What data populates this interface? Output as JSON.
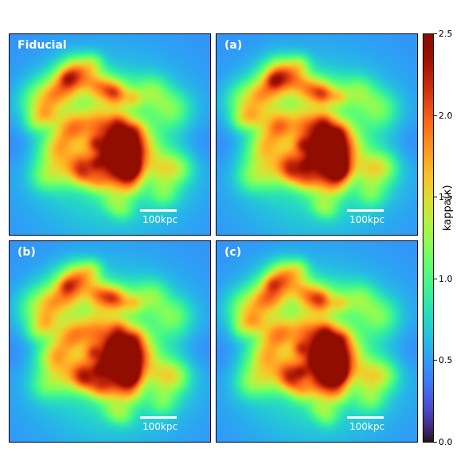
{
  "panels": [
    {
      "id": "fid",
      "label": "Fiducial",
      "scalebar_label": "100kpc",
      "variant": 0
    },
    {
      "id": "a",
      "label": "(a)",
      "scalebar_label": "100kpc",
      "variant": 1
    },
    {
      "id": "b",
      "label": "(b)",
      "scalebar_label": "100kpc",
      "variant": 2
    },
    {
      "id": "c",
      "label": "(c)",
      "scalebar_label": "100kpc",
      "variant": 3
    }
  ],
  "colorbar": {
    "title": "kappa(κ)",
    "min": 0.0,
    "max": 2.5,
    "ticks": [
      "0.0",
      "0.5",
      "1.0",
      "1.5",
      "2.0",
      "2.5"
    ],
    "colormap": "turbo"
  }
}
